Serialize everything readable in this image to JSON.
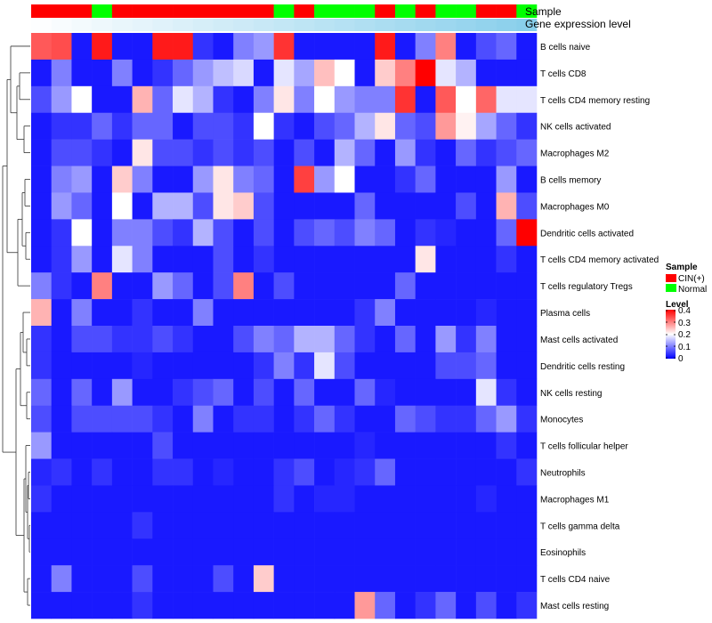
{
  "chart_data": {
    "type": "heatmap",
    "title": "",
    "annotation_tracks": [
      {
        "name": "Sample",
        "label": "Sample"
      },
      {
        "name": "Gene expression level",
        "label": "Gene expression level"
      }
    ],
    "sample_groups": [
      "CIN",
      "CIN",
      "CIN",
      "N",
      "CIN",
      "CIN",
      "CIN",
      "CIN",
      "CIN",
      "CIN",
      "CIN",
      "CIN",
      "N",
      "CIN",
      "N",
      "N",
      "N",
      "CIN",
      "N",
      "CIN",
      "N",
      "N",
      "CIN",
      "CIN",
      "N"
    ],
    "expression_gradient": [
      0.02,
      0.06,
      0.1,
      0.14,
      0.18,
      0.22,
      0.26,
      0.3,
      0.34,
      0.38,
      0.42,
      0.46,
      0.5,
      0.54,
      0.58,
      0.62,
      0.66,
      0.7,
      0.74,
      0.78,
      0.82,
      0.86,
      0.9,
      0.94,
      0.98
    ],
    "rows": [
      "B cells naive",
      "T cells CD8",
      "T cells CD4 memory resting",
      "NK cells activated",
      "Macrophages M2",
      "B cells memory",
      "Macrophages M0",
      "Dendritic cells activated",
      "T cells CD4 memory activated",
      "T cells regulatory  Tregs",
      "Plasma cells",
      "Mast cells activated",
      "Dendritic cells resting",
      "NK cells resting",
      "Monocytes",
      "T cells follicular helper",
      "Neutrophils",
      "Macrophages M1",
      "T cells gamma delta",
      "Eosinophils",
      "T cells CD4 naive",
      "Mast cells resting"
    ],
    "n_columns": 25,
    "values": [
      [
        0.33,
        0.34,
        0.02,
        0.38,
        0.02,
        0.02,
        0.38,
        0.38,
        0.04,
        0.02,
        0.1,
        0.12,
        0.36,
        0.02,
        0.02,
        0.02,
        0.02,
        0.38,
        0.02,
        0.1,
        0.3,
        0.02,
        0.06,
        0.08,
        0.02
      ],
      [
        0.02,
        0.1,
        0.02,
        0.02,
        0.1,
        0.02,
        0.04,
        0.08,
        0.12,
        0.15,
        0.17,
        0.02,
        0.18,
        0.13,
        0.25,
        0.2,
        0.02,
        0.24,
        0.3,
        0.4,
        0.18,
        0.14,
        0.02,
        0.02,
        0.02
      ],
      [
        0.06,
        0.12,
        0.2,
        0.02,
        0.02,
        0.26,
        0.08,
        0.18,
        0.14,
        0.04,
        0.02,
        0.1,
        0.22,
        0.1,
        0.2,
        0.12,
        0.1,
        0.1,
        0.36,
        0.02,
        0.33,
        0.2,
        0.32,
        0.18,
        0.18
      ],
      [
        0.02,
        0.04,
        0.04,
        0.08,
        0.04,
        0.08,
        0.08,
        0.02,
        0.06,
        0.06,
        0.04,
        0.2,
        0.04,
        0.02,
        0.06,
        0.08,
        0.14,
        0.22,
        0.08,
        0.06,
        0.28,
        0.21,
        0.13,
        0.08,
        0.04
      ],
      [
        0.02,
        0.06,
        0.06,
        0.04,
        0.02,
        0.22,
        0.06,
        0.06,
        0.04,
        0.06,
        0.04,
        0.06,
        0.02,
        0.06,
        0.02,
        0.14,
        0.08,
        0.02,
        0.12,
        0.04,
        0.02,
        0.08,
        0.04,
        0.06,
        0.08
      ],
      [
        0.02,
        0.1,
        0.12,
        0.02,
        0.24,
        0.1,
        0.02,
        0.02,
        0.12,
        0.22,
        0.1,
        0.08,
        0.02,
        0.35,
        0.12,
        0.2,
        0.02,
        0.02,
        0.04,
        0.08,
        0.02,
        0.02,
        0.02,
        0.12,
        0.02
      ],
      [
        0.02,
        0.12,
        0.08,
        0.02,
        0.2,
        0.02,
        0.14,
        0.14,
        0.06,
        0.22,
        0.24,
        0.06,
        0.02,
        0.02,
        0.02,
        0.02,
        0.08,
        0.02,
        0.02,
        0.02,
        0.02,
        0.06,
        0.02,
        0.26,
        0.06
      ],
      [
        0.02,
        0.04,
        0.2,
        0.02,
        0.1,
        0.1,
        0.06,
        0.04,
        0.14,
        0.06,
        0.02,
        0.06,
        0.02,
        0.06,
        0.08,
        0.06,
        0.1,
        0.08,
        0.02,
        0.04,
        0.03,
        0.02,
        0.02,
        0.08,
        0.4
      ],
      [
        0.02,
        0.04,
        0.12,
        0.02,
        0.18,
        0.1,
        0.02,
        0.02,
        0.02,
        0.06,
        0.02,
        0.04,
        0.02,
        0.02,
        0.02,
        0.02,
        0.02,
        0.02,
        0.02,
        0.22,
        0.02,
        0.02,
        0.02,
        0.04,
        0.02
      ],
      [
        0.1,
        0.04,
        0.02,
        0.3,
        0.02,
        0.02,
        0.12,
        0.08,
        0.02,
        0.06,
        0.3,
        0.02,
        0.06,
        0.02,
        0.02,
        0.02,
        0.02,
        0.02,
        0.08,
        0.02,
        0.02,
        0.02,
        0.02,
        0.02,
        0.02
      ],
      [
        0.26,
        0.02,
        0.1,
        0.02,
        0.02,
        0.04,
        0.02,
        0.02,
        0.1,
        0.02,
        0.02,
        0.02,
        0.02,
        0.02,
        0.02,
        0.02,
        0.04,
        0.1,
        0.02,
        0.02,
        0.02,
        0.02,
        0.03,
        0.02,
        0.02
      ],
      [
        0.04,
        0.02,
        0.06,
        0.06,
        0.04,
        0.04,
        0.06,
        0.04,
        0.02,
        0.02,
        0.06,
        0.1,
        0.08,
        0.14,
        0.14,
        0.08,
        0.04,
        0.02,
        0.08,
        0.02,
        0.12,
        0.04,
        0.1,
        0.02,
        0.02
      ],
      [
        0.04,
        0.02,
        0.02,
        0.02,
        0.02,
        0.03,
        0.02,
        0.02,
        0.02,
        0.02,
        0.02,
        0.04,
        0.1,
        0.04,
        0.18,
        0.06,
        0.02,
        0.02,
        0.02,
        0.02,
        0.06,
        0.06,
        0.08,
        0.02,
        0.02
      ],
      [
        0.08,
        0.02,
        0.08,
        0.02,
        0.12,
        0.02,
        0.02,
        0.04,
        0.06,
        0.08,
        0.02,
        0.06,
        0.02,
        0.08,
        0.02,
        0.02,
        0.08,
        0.03,
        0.02,
        0.02,
        0.02,
        0.02,
        0.18,
        0.04,
        0.02
      ],
      [
        0.06,
        0.02,
        0.06,
        0.06,
        0.06,
        0.06,
        0.04,
        0.02,
        0.1,
        0.02,
        0.04,
        0.04,
        0.02,
        0.04,
        0.08,
        0.04,
        0.02,
        0.02,
        0.08,
        0.06,
        0.04,
        0.04,
        0.08,
        0.12,
        0.04
      ],
      [
        0.12,
        0.02,
        0.02,
        0.02,
        0.02,
        0.02,
        0.06,
        0.02,
        0.02,
        0.02,
        0.02,
        0.02,
        0.02,
        0.02,
        0.02,
        0.02,
        0.03,
        0.02,
        0.02,
        0.02,
        0.02,
        0.02,
        0.02,
        0.04,
        0.02
      ],
      [
        0.03,
        0.04,
        0.02,
        0.04,
        0.02,
        0.02,
        0.04,
        0.04,
        0.02,
        0.03,
        0.02,
        0.02,
        0.04,
        0.06,
        0.02,
        0.03,
        0.04,
        0.08,
        0.02,
        0.02,
        0.02,
        0.02,
        0.02,
        0.02,
        0.04
      ],
      [
        0.04,
        0.02,
        0.02,
        0.02,
        0.02,
        0.02,
        0.02,
        0.02,
        0.02,
        0.02,
        0.02,
        0.02,
        0.04,
        0.02,
        0.03,
        0.03,
        0.02,
        0.02,
        0.02,
        0.02,
        0.02,
        0.02,
        0.03,
        0.02,
        0.02
      ],
      [
        0.02,
        0.02,
        0.02,
        0.02,
        0.02,
        0.04,
        0.02,
        0.02,
        0.02,
        0.02,
        0.02,
        0.02,
        0.02,
        0.02,
        0.02,
        0.02,
        0.02,
        0.02,
        0.02,
        0.02,
        0.02,
        0.02,
        0.02,
        0.02,
        0.02
      ],
      [
        0.02,
        0.02,
        0.02,
        0.02,
        0.02,
        0.02,
        0.02,
        0.02,
        0.02,
        0.02,
        0.02,
        0.02,
        0.02,
        0.02,
        0.02,
        0.02,
        0.02,
        0.02,
        0.02,
        0.02,
        0.02,
        0.02,
        0.02,
        0.02,
        0.02
      ],
      [
        0.02,
        0.1,
        0.02,
        0.02,
        0.02,
        0.06,
        0.02,
        0.02,
        0.02,
        0.06,
        0.02,
        0.24,
        0.02,
        0.02,
        0.02,
        0.02,
        0.02,
        0.02,
        0.02,
        0.02,
        0.02,
        0.02,
        0.02,
        0.02,
        0.02
      ],
      [
        0.02,
        0.02,
        0.02,
        0.02,
        0.02,
        0.04,
        0.02,
        0.02,
        0.02,
        0.02,
        0.02,
        0.02,
        0.02,
        0.02,
        0.02,
        0.02,
        0.28,
        0.08,
        0.02,
        0.04,
        0.08,
        0.02,
        0.06,
        0.02,
        0.04
      ]
    ],
    "legend": {
      "sample_title": "Sample",
      "sample_entries": [
        {
          "key": "CIN",
          "label": "CIN(+)",
          "color": "#ff0000"
        },
        {
          "key": "N",
          "label": "Normal",
          "color": "#00ff00"
        }
      ],
      "level_title": "Level",
      "level_ticks": [
        {
          "value": 0.4,
          "label": "0.4"
        },
        {
          "value": 0.3,
          "label": "0.3"
        },
        {
          "value": 0.2,
          "label": "0.2"
        },
        {
          "value": 0.1,
          "label": "0.1"
        },
        {
          "value": 0.0,
          "label": "0"
        }
      ],
      "level_range": [
        0,
        0.4
      ]
    },
    "colors": {
      "low": "#0000ff",
      "mid": "#ffffff",
      "high": "#ff0000",
      "gradient_low": "#ffffff",
      "gradient_high": "#87ceeb"
    }
  }
}
